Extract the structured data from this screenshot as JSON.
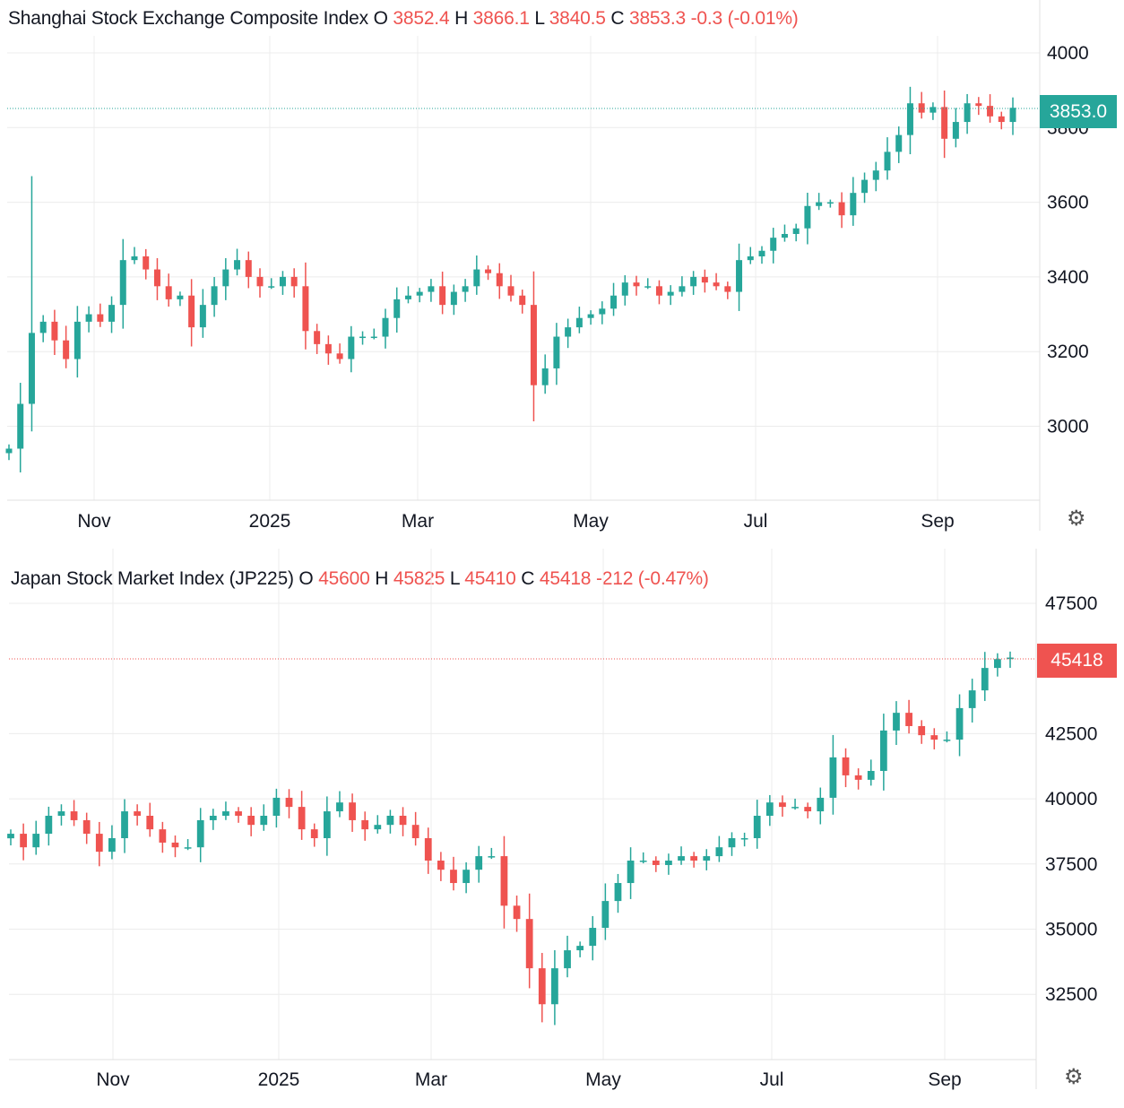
{
  "colors": {
    "up": "#26a69a",
    "down": "#ef5350",
    "grid": "#ececec",
    "text": "#131722"
  },
  "chart_data": [
    {
      "type": "candlestick",
      "title": "Shanghai Stock Exchange Composite Index",
      "ohlc_header": {
        "o_label": "O",
        "o": "3852.4",
        "h_label": "H",
        "h": "3866.1",
        "l_label": "L",
        "l": "3840.5",
        "c_label": "C",
        "c": "3853.3",
        "change": "-0.3 (-0.01%)"
      },
      "last_price_label": "3853.0",
      "y_ticks": [
        "4000",
        "3800",
        "3600",
        "3400",
        "3200",
        "3000"
      ],
      "y_tick_values": [
        4000,
        3800,
        3600,
        3400,
        3200,
        3000
      ],
      "ylim": [
        2800,
        4000
      ],
      "x_ticks": [
        "Nov",
        "2025",
        "Mar",
        "May",
        "Jul",
        "Sep"
      ],
      "grid": true,
      "closes": [
        2940,
        3060,
        3250,
        3280,
        3230,
        3180,
        3280,
        3300,
        3280,
        3325,
        3445,
        3455,
        3420,
        3375,
        3340,
        3350,
        3265,
        3325,
        3375,
        3420,
        3445,
        3400,
        3375,
        3375,
        3400,
        3375,
        3255,
        3220,
        3195,
        3180,
        3240,
        3240,
        3240,
        3290,
        3340,
        3350,
        3360,
        3375,
        3325,
        3360,
        3375,
        3420,
        3410,
        3375,
        3350,
        3325,
        3110,
        3155,
        3240,
        3265,
        3290,
        3300,
        3315,
        3350,
        3385,
        3375,
        3375,
        3350,
        3360,
        3375,
        3400,
        3385,
        3375,
        3360,
        3445,
        3455,
        3470,
        3505,
        3515,
        3530,
        3590,
        3600,
        3600,
        3565,
        3625,
        3660,
        3685,
        3735,
        3780,
        3865,
        3840,
        3855,
        3770,
        3815,
        3865,
        3858,
        3830,
        3815,
        3853
      ]
    },
    {
      "type": "candlestick",
      "title": "Japan Stock Market Index (JP225)",
      "ohlc_header": {
        "o_label": "O",
        "o": "45600",
        "h_label": "H",
        "h": "45825",
        "l_label": "L",
        "l": "45410",
        "c_label": "C",
        "c": "45418",
        "change": "-212 (-0.47%)"
      },
      "last_price_label": "45418",
      "y_ticks": [
        "47500",
        "42500",
        "40000",
        "37500",
        "35000",
        "32500"
      ],
      "y_tick_values": [
        47500,
        42500,
        40000,
        37500,
        35000,
        32500
      ],
      "ylim": [
        30000,
        47500
      ],
      "x_ticks": [
        "Nov",
        "2025",
        "Mar",
        "May",
        "Jul",
        "Sep"
      ],
      "grid": true,
      "closes": [
        38660,
        38140,
        38660,
        39350,
        39520,
        39180,
        38660,
        37970,
        38490,
        39520,
        39350,
        38830,
        38320,
        38140,
        38140,
        39180,
        39350,
        39520,
        39350,
        39000,
        39350,
        40040,
        39690,
        38830,
        38490,
        39520,
        39860,
        39180,
        38830,
        39000,
        39350,
        39000,
        38490,
        37630,
        37280,
        36770,
        37280,
        37800,
        37800,
        35900,
        35390,
        33500,
        32120,
        33500,
        34190,
        34360,
        35050,
        36080,
        36770,
        37630,
        37630,
        37460,
        37630,
        37800,
        37630,
        37800,
        38140,
        38490,
        38490,
        39350,
        39860,
        39690,
        39690,
        39520,
        40040,
        41590,
        40900,
        40730,
        41070,
        42620,
        43300,
        42790,
        42440,
        42270,
        42270,
        43480,
        44160,
        45020,
        45360,
        45418
      ]
    }
  ]
}
